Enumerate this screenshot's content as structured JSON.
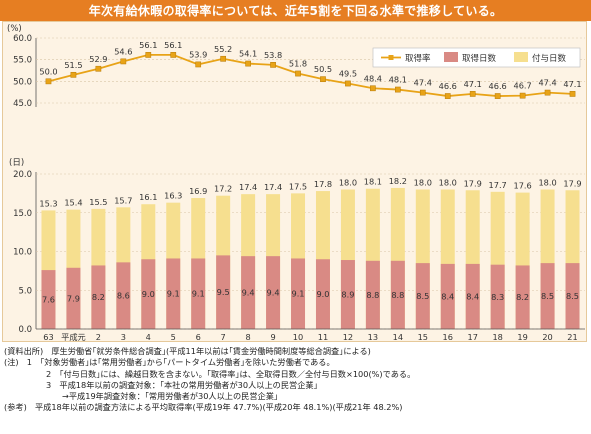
{
  "title": "年次有給休暇の取得率については、近年5割を下回る水準で推移している。",
  "chart_data": [
    {
      "type": "line",
      "ylabel": "(%)",
      "ylim": [
        45,
        60
      ],
      "yticks": [
        "45.0",
        "50.0",
        "55.0",
        "60.0"
      ],
      "series": [
        {
          "name": "取得率",
          "color": "#e8a317",
          "values": [
            50.0,
            51.5,
            52.9,
            54.6,
            56.1,
            56.1,
            53.9,
            55.2,
            54.1,
            53.8,
            51.8,
            50.5,
            49.5,
            48.4,
            48.1,
            47.4,
            46.6,
            47.1,
            46.6,
            46.7,
            47.4,
            47.1
          ]
        }
      ]
    },
    {
      "type": "bar",
      "ylabel": "(日)",
      "xlabel": "(年)",
      "ylim": [
        0,
        20
      ],
      "yticks": [
        "0.0",
        "5.0",
        "10.0",
        "15.0",
        "20.0"
      ],
      "categories": [
        "63",
        "平成元",
        "2",
        "3",
        "4",
        "5",
        "6",
        "7",
        "8",
        "9",
        "10",
        "11",
        "12",
        "13",
        "14",
        "15",
        "16",
        "17",
        "18",
        "19",
        "20",
        "21"
      ],
      "series": [
        {
          "name": "取得日数",
          "color": "#d98a84",
          "values": [
            7.6,
            7.9,
            8.2,
            8.6,
            9.0,
            9.1,
            9.1,
            9.5,
            9.4,
            9.4,
            9.1,
            9.0,
            8.9,
            8.8,
            8.8,
            8.5,
            8.4,
            8.4,
            8.3,
            8.2,
            8.5,
            8.5
          ],
          "labels": [
            "7.6",
            "7.9",
            "8.2",
            "8.6",
            "9.0",
            "9.1",
            "9.1",
            "9.5",
            "9.4",
            "9.4",
            "9.1",
            "9.0",
            "8.9",
            "8.8",
            "8.8",
            "8.5",
            "8.4",
            "8.4",
            "8.3",
            "8.2",
            "8.5",
            "8.5"
          ]
        },
        {
          "name": "付与日数",
          "color": "#f6df8f",
          "values": [
            15.3,
            15.4,
            15.5,
            15.7,
            16.1,
            16.3,
            16.9,
            17.2,
            17.4,
            17.4,
            17.5,
            17.8,
            18.0,
            18.1,
            18.2,
            18.0,
            18.0,
            17.9,
            17.7,
            17.6,
            18.0,
            17.9
          ],
          "labels": [
            "15.3",
            "15.4",
            "15.5",
            "15.7",
            "16.1",
            "16.3",
            "16.9",
            "17.2",
            "17.4",
            "17.4",
            "17.5",
            "17.8",
            "18.0",
            "18.1",
            "18.2",
            "18.0",
            "18.0",
            "17.9",
            "17.7",
            "17.6",
            "18.0",
            "17.9"
          ]
        }
      ]
    }
  ],
  "line_labels": [
    "50.0",
    "51.5",
    "52.9",
    "54.6",
    "56.1",
    "56.1",
    "53.9",
    "55.2",
    "54.1",
    "53.8",
    "51.8",
    "50.5",
    "49.5",
    "48.4",
    "48.1",
    "47.4",
    "46.6",
    "47.1",
    "46.6",
    "46.7",
    "47.4",
    "47.1"
  ],
  "legend": {
    "rate": "取得率",
    "taken": "取得日数",
    "granted": "付与日数"
  },
  "notes": [
    "(資料出所)　厚生労働省｢就労条件総合調査｣(平成11年以前は｢賃金労働時間制度等総合調査｣による)",
    "(注)　1　｢対象労働者｣は｢常用労働者｣から｢パートタイム労働者｣を除いた労働者である。",
    "2　｢付与日数｣には、繰越日数を含まない。｢取得率｣は、全取得日数／全付与日数×100(%)である。",
    "3　平成18年以前の調査対象：｢本社の常用労働者が30人以上の民営企業｣",
    "→平成19年調査対象：｢常用労働者が30人以上の民営企業｣",
    "(参考)　平成18年以前の調査方法による平均取得率(平成19年 47.7%)(平成20年 48.1%)(平成21年 48.2%)"
  ]
}
